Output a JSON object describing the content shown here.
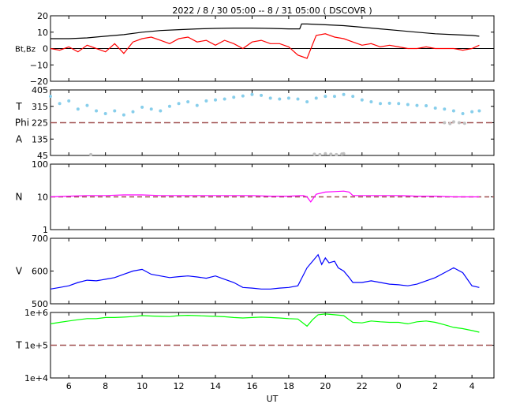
{
  "title": "2022 /  8 / 30   05:00 --   8 / 31   05:00 ( DSCOVR )",
  "x_label": "UT",
  "x_ticks": [
    "6",
    "8",
    "10",
    "12",
    "14",
    "16",
    "18",
    "20",
    "22",
    "0",
    "2",
    "4"
  ],
  "colors": {
    "bt": "#000000",
    "bz": "#ff0000",
    "temp": "#87ceeb",
    "phi": "#c0c0c0",
    "density": "#ff00ff",
    "speed": "#0000ff",
    "temperature": "#00ff00",
    "ref": "#a05050"
  },
  "chart_data": [
    {
      "type": "line",
      "ylabel": "Bt,Bz",
      "ylim": [
        -20,
        20
      ],
      "yticks": [
        "20",
        "10",
        "0",
        "−10",
        "−20"
      ],
      "series": [
        {
          "name": "Bt",
          "x": [
            5,
            6,
            7,
            8,
            9,
            10,
            11,
            12,
            13,
            14,
            15,
            16,
            17,
            18,
            18.6,
            18.7,
            19,
            20,
            21,
            22,
            23,
            24,
            25,
            26,
            27,
            28,
            28.4
          ],
          "y": [
            6,
            6,
            6.5,
            7.5,
            8.5,
            10,
            11,
            11.5,
            12,
            12.3,
            12.5,
            12.5,
            12.3,
            12,
            12,
            15,
            15,
            14.5,
            14,
            13,
            12,
            11,
            10,
            9,
            8.5,
            8,
            7.5
          ]
        },
        {
          "name": "Bz",
          "x": [
            5,
            5.5,
            6,
            6.5,
            7,
            7.5,
            8,
            8.5,
            9,
            9.5,
            10,
            10.5,
            11,
            11.5,
            12,
            12.5,
            13,
            13.5,
            14,
            14.5,
            15,
            15.5,
            16,
            16.5,
            17,
            17.5,
            18,
            18.5,
            19,
            19.5,
            20,
            20.5,
            21,
            21.5,
            22,
            22.5,
            23,
            23.5,
            24,
            24.5,
            25,
            25.5,
            26,
            26.5,
            27,
            27.5,
            28,
            28.4
          ],
          "y": [
            0,
            -1,
            1,
            -2,
            2,
            0,
            -2,
            3,
            -3,
            4,
            6,
            7,
            5,
            3,
            6,
            7,
            4,
            5,
            2,
            5,
            3,
            0,
            4,
            5,
            3,
            3,
            1,
            -4,
            -6,
            8,
            9,
            7,
            6,
            4,
            2,
            3,
            1,
            2,
            1,
            0,
            0,
            1,
            0,
            0,
            0,
            -1,
            0,
            2
          ]
        }
      ],
      "reference": 0
    },
    {
      "type": "scatter",
      "ylabel_top": "T",
      "ylabel_phi": "Phi",
      "ylabel_bottom": "A",
      "ylim": [
        45,
        405
      ],
      "yticks": [
        "405",
        "315",
        "225",
        "135",
        "45"
      ],
      "series": [
        {
          "name": "T",
          "x": [
            5,
            5.5,
            6,
            6.5,
            7,
            7.5,
            8,
            8.5,
            9,
            9.5,
            10,
            10.5,
            11,
            11.5,
            12,
            12.5,
            13,
            13.5,
            14,
            14.5,
            15,
            15.5,
            16,
            16.5,
            17,
            17.5,
            18,
            18.5,
            19,
            19.5,
            20,
            20.5,
            21,
            21.5,
            22,
            22.5,
            23,
            23.5,
            24,
            24.5,
            25,
            25.5,
            26,
            26.5,
            27,
            27.5,
            28,
            28.4
          ],
          "y": [
            370,
            330,
            345,
            300,
            320,
            290,
            275,
            290,
            268,
            285,
            310,
            300,
            290,
            315,
            330,
            340,
            320,
            345,
            350,
            355,
            365,
            372,
            380,
            375,
            360,
            355,
            360,
            355,
            340,
            360,
            370,
            370,
            380,
            370,
            350,
            340,
            330,
            332,
            330,
            325,
            320,
            318,
            305,
            300,
            290,
            275,
            285,
            290
          ]
        },
        {
          "name": "Phi",
          "x": [
            7.2,
            19.4,
            19.7,
            20,
            20.3,
            20.6,
            20.9,
            21,
            26.5,
            26.8,
            27,
            27.3,
            27.6
          ],
          "y": [
            50,
            52,
            50,
            55,
            52,
            50,
            53,
            55,
            225,
            220,
            230,
            225,
            222
          ]
        }
      ],
      "reference": 225
    },
    {
      "type": "line",
      "ylabel": "N",
      "scale": "log",
      "ylim": [
        1,
        100
      ],
      "yticks": [
        "100",
        "10",
        "1"
      ],
      "series": [
        {
          "name": "N",
          "x": [
            5,
            6,
            7,
            8,
            9,
            10,
            11,
            12,
            13,
            14,
            15,
            16,
            17,
            18,
            18.8,
            19,
            19.2,
            19.5,
            20,
            20.5,
            21,
            21.3,
            21.5,
            22,
            23,
            24,
            25,
            26,
            27,
            28,
            28.4
          ],
          "y": [
            10,
            10.5,
            11,
            11,
            11.5,
            11.5,
            11,
            11,
            11,
            11,
            11,
            11,
            10.5,
            10.5,
            11,
            10,
            7,
            12,
            14,
            14.5,
            15,
            14,
            11,
            11,
            11,
            11,
            10.5,
            10.5,
            10,
            10,
            10
          ]
        }
      ],
      "reference": 10
    },
    {
      "type": "line",
      "ylabel": "V",
      "ylim": [
        500,
        700
      ],
      "yticks": [
        "700",
        "600",
        "500"
      ],
      "series": [
        {
          "name": "V",
          "x": [
            5,
            5.5,
            6,
            6.5,
            7,
            7.5,
            8,
            8.5,
            9,
            9.5,
            10,
            10.5,
            11,
            11.5,
            12,
            12.5,
            13,
            13.5,
            14,
            14.5,
            15,
            15.5,
            16,
            16.5,
            17,
            17.5,
            18,
            18.5,
            19,
            19.3,
            19.6,
            19.8,
            20,
            20.2,
            20.5,
            20.7,
            21,
            21.3,
            21.5,
            22,
            22.5,
            23,
            23.5,
            24,
            24.5,
            25,
            25.5,
            26,
            26.5,
            27,
            27.5,
            28,
            28.4
          ],
          "y": [
            545,
            550,
            555,
            565,
            572,
            570,
            575,
            580,
            590,
            600,
            605,
            590,
            585,
            580,
            583,
            585,
            582,
            578,
            585,
            575,
            565,
            550,
            548,
            545,
            545,
            548,
            550,
            555,
            610,
            630,
            650,
            620,
            640,
            625,
            630,
            610,
            600,
            580,
            565,
            565,
            570,
            565,
            560,
            558,
            555,
            560,
            570,
            580,
            595,
            610,
            595,
            555,
            550
          ]
        }
      ]
    },
    {
      "type": "line",
      "ylabel": "T",
      "scale": "log",
      "ylim": [
        10000,
        1000000
      ],
      "yticks": [
        "1e+6",
        "1e+5",
        "1e+4"
      ],
      "series": [
        {
          "name": "T",
          "x": [
            5,
            5.5,
            6,
            6.5,
            7,
            7.5,
            8,
            8.5,
            9,
            9.5,
            10,
            10.5,
            11,
            11.5,
            12,
            12.5,
            13,
            13.5,
            14,
            14.5,
            15,
            15.5,
            16,
            16.5,
            17,
            17.5,
            18,
            18.5,
            19,
            19.3,
            19.6,
            20,
            20.5,
            21,
            21.3,
            21.5,
            22,
            22.5,
            23,
            23.5,
            24,
            24.5,
            25,
            25.5,
            26,
            26.5,
            27,
            27.5,
            28,
            28.4
          ],
          "y": [
            450000,
            500000,
            550000,
            600000,
            650000,
            650000,
            700000,
            700000,
            720000,
            750000,
            800000,
            780000,
            760000,
            750000,
            800000,
            820000,
            800000,
            780000,
            760000,
            740000,
            700000,
            680000,
            700000,
            720000,
            700000,
            680000,
            650000,
            630000,
            380000,
            600000,
            850000,
            900000,
            850000,
            800000,
            600000,
            500000,
            480000,
            550000,
            520000,
            500000,
            500000,
            450000,
            520000,
            550000,
            500000,
            420000,
            350000,
            320000,
            280000,
            250000
          ]
        }
      ],
      "reference": 100000
    }
  ]
}
